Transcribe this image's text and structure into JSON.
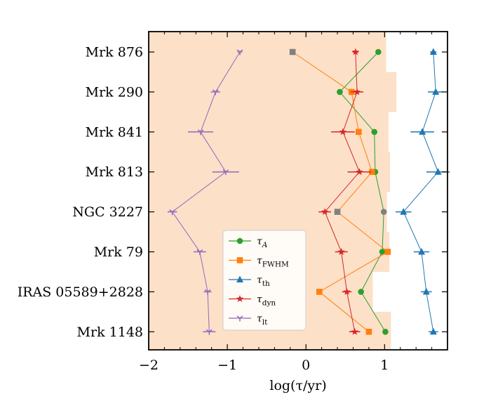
{
  "chart_data": {
    "type": "line",
    "title": "",
    "xlabel": "log(τ/yr)",
    "ylabel": "",
    "xlim": [
      -2.0,
      1.8
    ],
    "xticks": [
      -2,
      -1,
      0,
      1
    ],
    "xtick_labels": [
      "−2",
      "−1",
      "0",
      "1"
    ],
    "categories": [
      "Mrk 876",
      "Mrk 290",
      "Mrk 841",
      "Mrk 813",
      "NGC 3227",
      "Mrk 79",
      "IRAS 05589+2828",
      "Mrk 1148"
    ],
    "shaded_region": {
      "color": "#fde0c8",
      "x_from": -2.0,
      "x_right_edges": [
        1.02,
        1.15,
        1.05,
        1.07,
        1.03,
        1.06,
        0.85,
        1.08
      ]
    },
    "legend_position": "lower-center",
    "series": [
      {
        "name": "τ_A",
        "color": "#2ca02c",
        "marker": "circle",
        "values": [
          0.92,
          0.43,
          0.87,
          0.88,
          0.99,
          0.97,
          0.7,
          1.01
        ],
        "xerr": [
          0.02,
          0.02,
          0.02,
          0.02,
          0.02,
          0.02,
          0.02,
          0.02
        ],
        "special_marker_color": "#808080",
        "special_indices": [
          4
        ]
      },
      {
        "name": "τ_FWHM",
        "color": "#ff7f0e",
        "marker": "square",
        "values": [
          -0.17,
          0.58,
          0.67,
          0.84,
          0.4,
          1.04,
          0.17,
          0.8
        ],
        "xerr": [
          0.0,
          0.0,
          0.0,
          0.0,
          0.0,
          0.0,
          0.0,
          0.0
        ],
        "special_marker_color": "#808080",
        "special_indices": [
          0,
          4
        ]
      },
      {
        "name": "τ_th",
        "color": "#1f77b4",
        "marker": "triangle",
        "values": [
          1.62,
          1.65,
          1.48,
          1.68,
          1.24,
          1.47,
          1.53,
          1.62
        ],
        "xerr": [
          0.04,
          0.1,
          0.15,
          0.15,
          0.1,
          0.1,
          0.07,
          0.06
        ]
      },
      {
        "name": "τ_dyn",
        "color": "#d62728",
        "marker": "star",
        "values": [
          0.63,
          0.65,
          0.47,
          0.68,
          0.24,
          0.45,
          0.52,
          0.62
        ],
        "xerr": [
          0.04,
          0.08,
          0.15,
          0.15,
          0.08,
          0.08,
          0.06,
          0.07
        ]
      },
      {
        "name": "τ_lt",
        "color": "#9467bd",
        "marker": "tri_down",
        "values": [
          -0.84,
          -1.15,
          -1.34,
          -1.02,
          -1.7,
          -1.35,
          -1.25,
          -1.23
        ],
        "xerr": [
          0.03,
          0.06,
          0.16,
          0.17,
          0.06,
          0.08,
          0.05,
          0.08
        ]
      }
    ],
    "legend": [
      {
        "main": "τ",
        "sub": "A"
      },
      {
        "main": "τ",
        "sub": "FWHM"
      },
      {
        "main": "τ",
        "sub": "th"
      },
      {
        "main": "τ",
        "sub": "dyn"
      },
      {
        "main": "τ",
        "sub": "lt"
      }
    ]
  }
}
